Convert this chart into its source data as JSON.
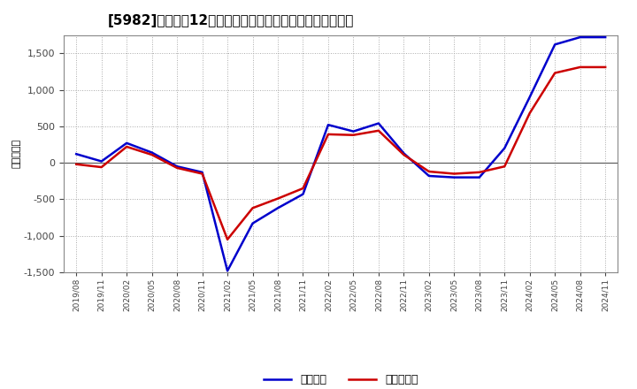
{
  "title": "[5982]　利益だ12か月移動合計の対前年同期増減額の推移",
  "ylabel": "（百万円）",
  "ylim": [
    -1500,
    1750
  ],
  "yticks": [
    -1500,
    -1000,
    -500,
    0,
    500,
    1000,
    1500
  ],
  "background_color": "#ffffff",
  "plot_bg_color": "#ffffff",
  "grid_color": "#aaaaaa",
  "x_labels": [
    "2019/08",
    "2019/11",
    "2020/02",
    "2020/05",
    "2020/08",
    "2020/11",
    "2021/02",
    "2021/05",
    "2021/08",
    "2021/11",
    "2022/02",
    "2022/05",
    "2022/08",
    "2022/11",
    "2023/02",
    "2023/05",
    "2023/08",
    "2023/11",
    "2024/02",
    "2024/05",
    "2024/08",
    "2024/11"
  ],
  "keijo_rieki": [
    120,
    20,
    270,
    140,
    -50,
    -130,
    -1480,
    -830,
    -620,
    -430,
    520,
    430,
    540,
    130,
    -180,
    -200,
    -200,
    200,
    900,
    1620,
    1720,
    1720
  ],
  "touki_junrieki": [
    -20,
    -60,
    220,
    110,
    -70,
    -150,
    -1050,
    -620,
    -490,
    -350,
    390,
    380,
    440,
    110,
    -120,
    -150,
    -130,
    -50,
    680,
    1230,
    1310,
    1310
  ],
  "line_color_keijo": "#0000cc",
  "line_color_touki": "#cc0000",
  "legend_keijo": "経常利益",
  "legend_touki": "当期純利益",
  "line_width": 1.8
}
